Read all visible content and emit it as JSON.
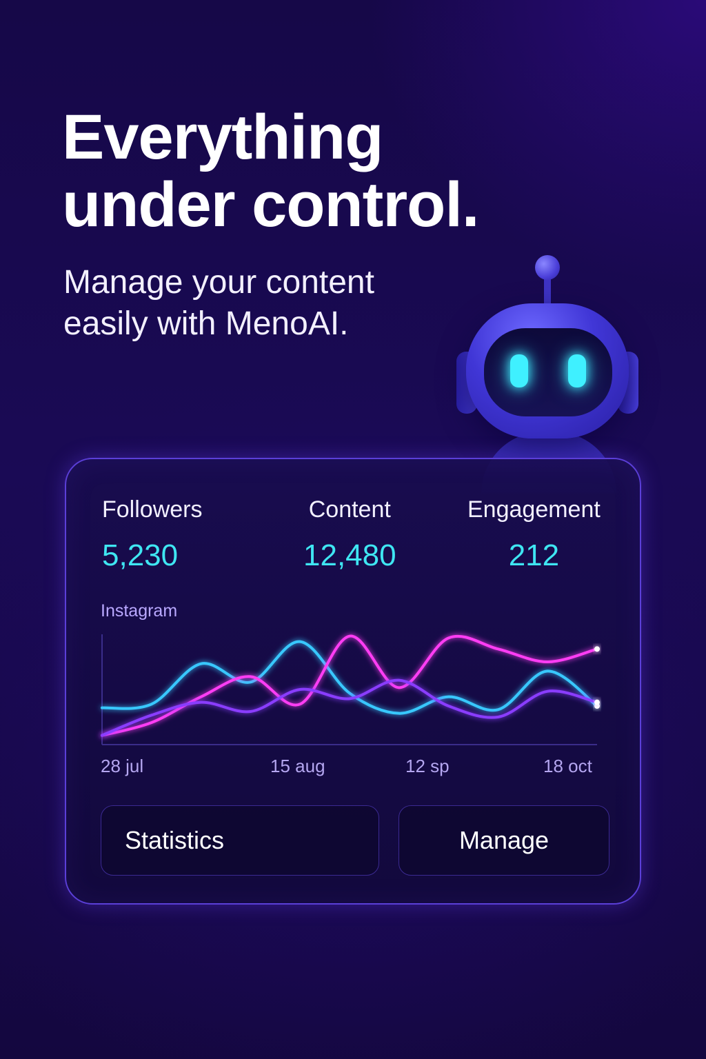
{
  "hero": {
    "headline": "Everything\nunder control.",
    "subline": "Manage your content\neasily with MenoAI."
  },
  "stats": [
    {
      "label": "Followers",
      "value": "5,230"
    },
    {
      "label": "Content",
      "value": "12,480"
    },
    {
      "label": "Engagement",
      "value": "212"
    }
  ],
  "chart": {
    "label": "Instagram"
  },
  "chart_data": {
    "type": "line",
    "title": "Instagram",
    "x_ticks": [
      "28 jul",
      "15 aug",
      "12 sp",
      "18 oct"
    ],
    "series": [
      {
        "color": "#39c8ff",
        "values": [
          20,
          24,
          68,
          48,
          92,
          36,
          14,
          32,
          18,
          60,
          22
        ]
      },
      {
        "color": "#ff3cf4",
        "values": [
          -10,
          4,
          32,
          54,
          24,
          98,
          42,
          96,
          84,
          70,
          84
        ]
      },
      {
        "color": "#8a3cff",
        "values": [
          -10,
          12,
          26,
          16,
          40,
          30,
          50,
          22,
          10,
          38,
          26
        ]
      }
    ],
    "grid": false,
    "legend": "none"
  },
  "buttons": {
    "statistics": "Statistics",
    "manage": "Manage"
  },
  "colors": {
    "accent_cyan": "#3fe6f2",
    "accent_magenta": "#ff3cf4",
    "accent_violet": "#8a3cff",
    "card_border": "#5b3fd8"
  }
}
